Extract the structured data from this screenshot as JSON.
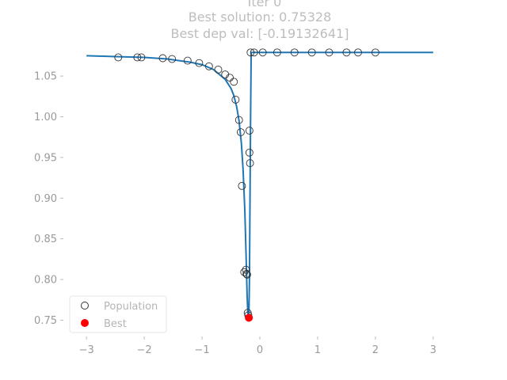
{
  "chart_data": {
    "type": "scatter",
    "title_lines": [
      "Iter 0",
      "Best solution: 0.75328",
      "Best dep val: [-0.19132641]"
    ],
    "xlabel": "",
    "ylabel": "",
    "xlim": [
      -3.4,
      3.4
    ],
    "ylim": [
      0.73,
      1.09
    ],
    "x_ticks": [
      -3,
      -2,
      -1,
      0,
      1,
      2,
      3
    ],
    "x_tick_labels": [
      "−3",
      "−2",
      "−1",
      "0",
      "1",
      "2",
      "3"
    ],
    "y_ticks": [
      0.75,
      0.8,
      0.85,
      0.9,
      0.95,
      1.0,
      1.05
    ],
    "y_tick_labels": [
      "0.75",
      "0.80",
      "0.85",
      "0.90",
      "0.95",
      "1.00",
      "1.05"
    ],
    "grid": false,
    "legend": {
      "position": "lower-left",
      "entries": [
        "Population",
        "Best"
      ]
    },
    "curve": {
      "color": "#1f77b4",
      "x": [
        -3.0,
        -2.5,
        -2.0,
        -1.6,
        -1.2,
        -1.0,
        -0.8,
        -0.6,
        -0.5,
        -0.45,
        -0.4,
        -0.36,
        -0.32,
        -0.29,
        -0.26,
        -0.24,
        -0.22,
        -0.205,
        -0.19,
        -0.18,
        -0.17,
        -0.16,
        -0.15,
        0.0,
        1.0,
        2.0,
        3.0
      ],
      "y": [
        1.075,
        1.074,
        1.073,
        1.071,
        1.067,
        1.064,
        1.058,
        1.046,
        1.035,
        1.026,
        1.012,
        0.995,
        0.968,
        0.935,
        0.885,
        0.835,
        0.78,
        0.755,
        0.753,
        0.8,
        0.9,
        1.0,
        1.079,
        1.079,
        1.079,
        1.079,
        1.079
      ]
    },
    "series": [
      {
        "name": "Population",
        "marker": "open-circle",
        "color": "#333333",
        "x": [
          -2.45,
          -2.12,
          -2.05,
          -1.68,
          -1.52,
          -1.25,
          -1.05,
          -0.88,
          -0.72,
          -0.6,
          -0.52,
          -0.45,
          -0.42,
          -0.36,
          -0.33,
          -0.31,
          -0.27,
          -0.24,
          -0.23,
          -0.22,
          -0.21,
          -0.2,
          -0.18,
          -0.18,
          -0.17,
          -0.16,
          -0.1,
          0.05,
          0.3,
          0.6,
          0.9,
          1.2,
          1.5,
          1.7,
          2.0
        ],
        "y": [
          1.073,
          1.073,
          1.073,
          1.072,
          1.071,
          1.069,
          1.066,
          1.062,
          1.058,
          1.052,
          1.048,
          1.043,
          1.021,
          0.996,
          0.981,
          0.915,
          0.809,
          0.812,
          0.807,
          0.806,
          0.759,
          0.756,
          0.983,
          0.956,
          0.943,
          1.079,
          1.079,
          1.079,
          1.079,
          1.079,
          1.079,
          1.079,
          1.079,
          1.079,
          1.079
        ]
      },
      {
        "name": "Best",
        "marker": "filled-circle",
        "color": "#ff0000",
        "x": [
          -0.19
        ],
        "y": [
          0.753
        ]
      }
    ]
  }
}
